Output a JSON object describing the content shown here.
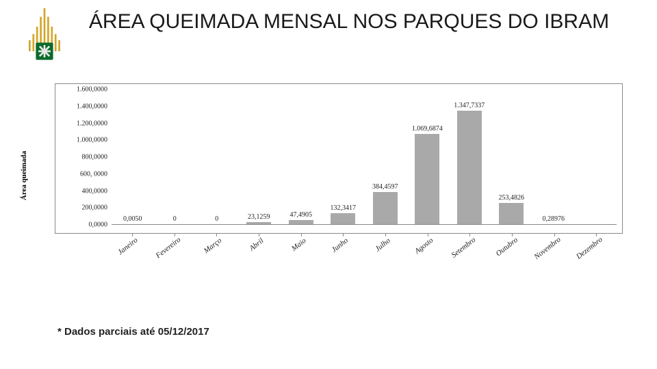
{
  "header": {
    "title": "ÁREA QUEIMADA MENSAL NOS PARQUES DO IBRAM"
  },
  "logo": {
    "bar_color": "#d4a529",
    "emblem_bg": "#0b6b2a",
    "cross_color": "#e8e8e8"
  },
  "chart": {
    "type": "bar",
    "ylabel": "Área queimada",
    "ylabel_fontsize": 11,
    "ylim_max": 1600,
    "ytick_step": 200,
    "ytick_labels": [
      "0,0000",
      "200,0000",
      "400,0000",
      "600, 0000",
      "800,0000",
      "1.000,0000",
      "1.200,0000",
      "1.400,0000",
      "1.600,0000"
    ],
    "bar_color": "#a9a9a9",
    "background_color": "#ffffff",
    "border_color": "#888888",
    "value_label_fontsize": 10,
    "xlabel_fontsize": 11,
    "xlabel_rotation_deg": -38,
    "categories": [
      "Janeiro",
      "Fevereiro",
      "Março",
      "Abril",
      "Maio",
      "Junho",
      "Julho",
      "Agosto",
      "Setembro",
      "Outubro",
      "Novembro",
      "Dezembro"
    ],
    "values": [
      0.005,
      0,
      0,
      23.1259,
      47.4905,
      132.3417,
      384.4597,
      1069.6874,
      1347.7337,
      253.4826,
      0.28976,
      null
    ],
    "value_labels": [
      "0,0050",
      "0",
      "0",
      "23,1259",
      "47,4905",
      "132,3417",
      "384,4597",
      "1.069,6874",
      "1.347,7337",
      "253,4826",
      "0,28976",
      ""
    ]
  },
  "footnote": "* Dados parciais até 05/12/2017"
}
